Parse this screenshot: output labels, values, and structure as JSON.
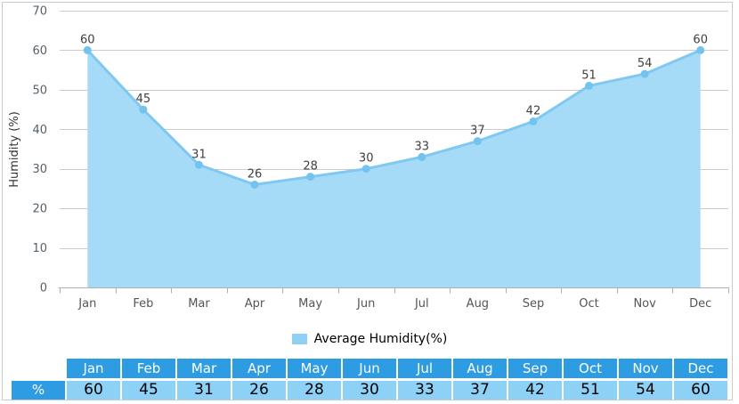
{
  "chart_data": {
    "type": "area",
    "categories": [
      "Jan",
      "Feb",
      "Mar",
      "Apr",
      "May",
      "Jun",
      "Jul",
      "Aug",
      "Sep",
      "Oct",
      "Nov",
      "Dec"
    ],
    "series": [
      {
        "name": "Average Humidity(%)",
        "values": [
          60,
          45,
          31,
          26,
          28,
          30,
          33,
          37,
          42,
          51,
          54,
          60
        ]
      }
    ],
    "title": "",
    "xlabel": "",
    "ylabel": "Humidity (%)",
    "ylim": [
      0,
      70
    ],
    "yticks": [
      0,
      10,
      20,
      30,
      40,
      50,
      60,
      70
    ],
    "grid": "horizontal",
    "legend_position": "bottom",
    "data_labels_shown": true
  },
  "legend": {
    "label": "Average Humidity(%)"
  },
  "table": {
    "corner_label": "",
    "row_label": "%",
    "columns": [
      "Jan",
      "Feb",
      "Mar",
      "Apr",
      "May",
      "Jun",
      "Jul",
      "Aug",
      "Sep",
      "Oct",
      "Nov",
      "Dec"
    ],
    "values": [
      "60",
      "45",
      "31",
      "26",
      "28",
      "30",
      "33",
      "37",
      "42",
      "51",
      "54",
      "60"
    ]
  },
  "colors": {
    "area_fill": "#A6DBF8",
    "line": "#7EC8F1",
    "marker": "#73C3EE",
    "gridline": "#CCCCCC",
    "axis": "#B0B0B0",
    "axis_label": "#556068",
    "x_label": "#555555",
    "y_title": "#333333",
    "data_label": "#404040",
    "frame_border": "#CCCCCC",
    "legend_swatch": "#8FD0F4",
    "table_header_bg": "#2E9CE3",
    "table_cell_bg": "#8DD1F6",
    "table_header_text": "#FFFFFF",
    "table_cell_text": "#000000"
  }
}
